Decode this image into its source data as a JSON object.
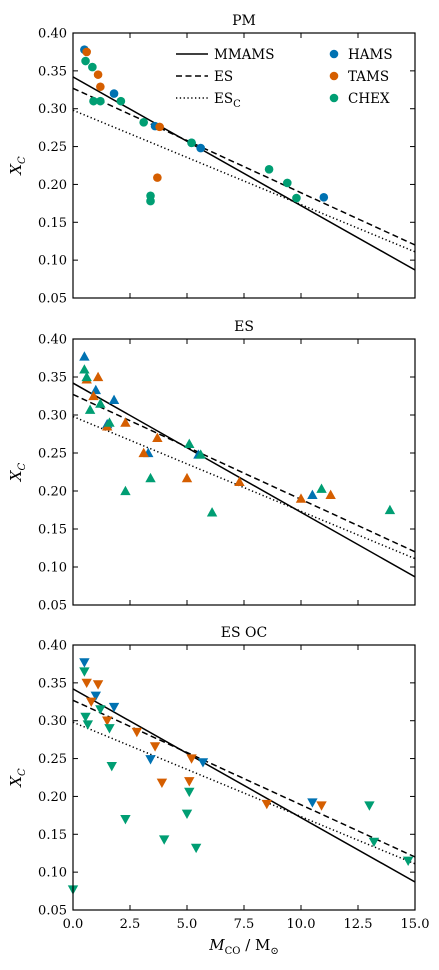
{
  "chart_data": [
    {
      "type": "scatter",
      "title": "PM",
      "marker": "circle",
      "xlim": [
        0,
        15
      ],
      "ylim": [
        0.05,
        0.4
      ],
      "ylabel": "X",
      "ylabel_sub": "C",
      "yticks": [
        "0.05",
        "0.10",
        "0.15",
        "0.20",
        "0.25",
        "0.30",
        "0.35",
        "0.40"
      ],
      "legend": {
        "placement": "top",
        "lines": [
          {
            "label": "MMAMS",
            "label_sub": "",
            "style": "solid"
          },
          {
            "label": "ES",
            "label_sub": "",
            "style": "dashed"
          },
          {
            "label": "ES",
            "label_sub": "C",
            "style": "dotted"
          }
        ],
        "points": [
          {
            "label": "HAMS",
            "color": "#0072b2"
          },
          {
            "label": "TAMS",
            "color": "#d55e00"
          },
          {
            "label": "CHEX",
            "color": "#009e73"
          }
        ]
      },
      "series": [
        {
          "name": "HAMS",
          "color": "#0072b2",
          "points": [
            [
              0.5,
              0.378
            ],
            [
              1.8,
              0.32
            ],
            [
              3.6,
              0.277
            ],
            [
              5.2,
              0.255
            ],
            [
              5.6,
              0.248
            ],
            [
              11.0,
              0.183
            ]
          ]
        },
        {
          "name": "TAMS",
          "color": "#d55e00",
          "points": [
            [
              0.6,
              0.375
            ],
            [
              1.1,
              0.345
            ],
            [
              1.2,
              0.329
            ],
            [
              3.7,
              0.209
            ],
            [
              3.8,
              0.276
            ]
          ]
        },
        {
          "name": "CHEX",
          "color": "#009e73",
          "points": [
            [
              0.55,
              0.363
            ],
            [
              0.85,
              0.355
            ],
            [
              0.9,
              0.31
            ],
            [
              1.2,
              0.31
            ],
            [
              2.1,
              0.31
            ],
            [
              3.1,
              0.282
            ],
            [
              3.4,
              0.185
            ],
            [
              3.4,
              0.178
            ],
            [
              5.2,
              0.255
            ],
            [
              8.6,
              0.22
            ],
            [
              9.4,
              0.202
            ],
            [
              9.8,
              0.182
            ]
          ]
        }
      ]
    },
    {
      "type": "scatter",
      "title": "ES",
      "marker": "triangle-up",
      "xlim": [
        0,
        15
      ],
      "ylim": [
        0.05,
        0.4
      ],
      "ylabel": "X",
      "ylabel_sub": "C",
      "yticks": [
        "0.05",
        "0.10",
        "0.15",
        "0.20",
        "0.25",
        "0.30",
        "0.35",
        "0.40"
      ],
      "series": [
        {
          "name": "HAMS",
          "color": "#0072b2",
          "points": [
            [
              0.5,
              0.377
            ],
            [
              1.0,
              0.333
            ],
            [
              1.8,
              0.32
            ],
            [
              1.5,
              0.288
            ],
            [
              3.3,
              0.25
            ],
            [
              5.5,
              0.248
            ],
            [
              10.5,
              0.195
            ]
          ]
        },
        {
          "name": "TAMS",
          "color": "#d55e00",
          "points": [
            [
              0.6,
              0.347
            ],
            [
              0.9,
              0.325
            ],
            [
              1.1,
              0.35
            ],
            [
              1.5,
              0.285
            ],
            [
              2.3,
              0.29
            ],
            [
              3.1,
              0.25
            ],
            [
              3.7,
              0.27
            ],
            [
              5.0,
              0.217
            ],
            [
              7.3,
              0.212
            ],
            [
              10.0,
              0.19
            ],
            [
              11.3,
              0.195
            ]
          ]
        },
        {
          "name": "CHEX",
          "color": "#009e73",
          "points": [
            [
              0.5,
              0.36
            ],
            [
              0.6,
              0.35
            ],
            [
              0.75,
              0.307
            ],
            [
              1.2,
              0.315
            ],
            [
              1.6,
              0.29
            ],
            [
              2.3,
              0.2
            ],
            [
              3.4,
              0.217
            ],
            [
              5.1,
              0.262
            ],
            [
              5.6,
              0.248
            ],
            [
              6.1,
              0.172
            ],
            [
              10.9,
              0.203
            ],
            [
              13.9,
              0.175
            ]
          ]
        }
      ]
    },
    {
      "type": "scatter",
      "title": "ES OC",
      "marker": "triangle-down",
      "xlim": [
        0,
        15
      ],
      "ylim": [
        0.05,
        0.4
      ],
      "ylabel": "X",
      "ylabel_sub": "C",
      "xlabel": "M",
      "xlabel_sub": "CO",
      "xlabel_unit": "/ M",
      "xlabel_unit_sub": "⊙",
      "xticks": [
        "0.0",
        "2.5",
        "5.0",
        "7.5",
        "10.0",
        "12.5",
        "15.0"
      ],
      "yticks": [
        "0.05",
        "0.10",
        "0.15",
        "0.20",
        "0.25",
        "0.30",
        "0.35",
        "0.40"
      ],
      "series": [
        {
          "name": "HAMS",
          "color": "#0072b2",
          "points": [
            [
              0.5,
              0.377
            ],
            [
              1.0,
              0.333
            ],
            [
              1.8,
              0.318
            ],
            [
              3.4,
              0.249
            ],
            [
              5.7,
              0.245
            ],
            [
              10.5,
              0.192
            ]
          ]
        },
        {
          "name": "TAMS",
          "color": "#d55e00",
          "points": [
            [
              0.6,
              0.35
            ],
            [
              0.8,
              0.325
            ],
            [
              1.1,
              0.348
            ],
            [
              1.5,
              0.3
            ],
            [
              2.8,
              0.285
            ],
            [
              3.6,
              0.266
            ],
            [
              3.9,
              0.218
            ],
            [
              5.1,
              0.22
            ],
            [
              5.2,
              0.25
            ],
            [
              8.5,
              0.19
            ],
            [
              10.9,
              0.188
            ]
          ]
        },
        {
          "name": "CHEX",
          "color": "#009e73",
          "points": [
            [
              0.0,
              0.077
            ],
            [
              0.5,
              0.365
            ],
            [
              0.55,
              0.305
            ],
            [
              0.65,
              0.295
            ],
            [
              1.2,
              0.315
            ],
            [
              1.6,
              0.29
            ],
            [
              1.7,
              0.24
            ],
            [
              2.3,
              0.17
            ],
            [
              4.0,
              0.143
            ],
            [
              5.0,
              0.177
            ],
            [
              5.1,
              0.206
            ],
            [
              5.4,
              0.132
            ],
            [
              13.0,
              0.188
            ],
            [
              13.2,
              0.14
            ],
            [
              14.7,
              0.115
            ]
          ]
        }
      ]
    }
  ],
  "fits": [
    {
      "name": "MMAMS",
      "style": "solid",
      "points": [
        [
          0,
          0.342
        ],
        [
          15,
          0.087
        ]
      ]
    },
    {
      "name": "ES",
      "style": "dashed",
      "points": [
        [
          0,
          0.327
        ],
        [
          15,
          0.12
        ]
      ]
    },
    {
      "name": "ES_C",
      "style": "dotted",
      "points": [
        [
          0,
          0.298
        ],
        [
          15,
          0.111
        ]
      ]
    }
  ]
}
